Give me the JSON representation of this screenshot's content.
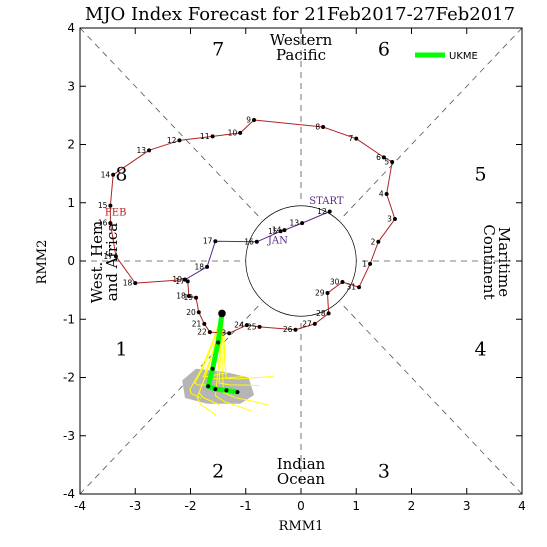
{
  "chart_data": {
    "type": "scatter",
    "title": "MJO Index Forecast for 21Feb2017-27Feb2017",
    "xlabel": "RMM1",
    "ylabel": "RMM2",
    "xlim": [
      -4,
      4
    ],
    "ylim": [
      -4,
      4
    ],
    "x_ticks": [
      "-4",
      "-3",
      "-2",
      "-1",
      "0",
      "1",
      "2",
      "3",
      "4"
    ],
    "y_ticks": [
      "-4",
      "-3",
      "-2",
      "-1",
      "0",
      "1",
      "2",
      "3",
      "4"
    ],
    "unit_circle_radius": 1,
    "phases": [
      {
        "label": "1",
        "x": -3.25,
        "y": -1.5
      },
      {
        "label": "2",
        "x": -1.5,
        "y": -3.6
      },
      {
        "label": "3",
        "x": 1.5,
        "y": -3.6
      },
      {
        "label": "4",
        "x": 3.25,
        "y": -1.5
      },
      {
        "label": "5",
        "x": 3.25,
        "y": 1.5
      },
      {
        "label": "6",
        "x": 1.5,
        "y": 3.65
      },
      {
        "label": "7",
        "x": -1.5,
        "y": 3.65
      },
      {
        "label": "8",
        "x": -3.25,
        "y": 1.5
      }
    ],
    "regions": [
      {
        "lines": [
          "Western",
          "Pacific"
        ]
      },
      {
        "lines": [
          "Indian",
          "Ocean"
        ]
      },
      {
        "lines": [
          "West. Hem",
          "and Africa"
        ]
      },
      {
        "lines": [
          "Maritime",
          "Continent"
        ]
      }
    ],
    "legend": {
      "position": "top-right",
      "entries": [
        {
          "label": "UKME",
          "color": "#00ff00"
        }
      ]
    },
    "months": [
      {
        "label": "START",
        "color": "#5b2a86",
        "x": 0.15,
        "y": 0.98
      },
      {
        "label": "JAN",
        "color": "#5b2a86",
        "x": -0.6,
        "y": 0.3
      },
      {
        "label": "FEB",
        "color": "#b22222",
        "x": -3.55,
        "y": 0.78
      }
    ],
    "series": [
      {
        "color": "#5b2a86",
        "points": [
          {
            "x": 0.52,
            "y": 0.85,
            "day": "12"
          },
          {
            "x": 0.02,
            "y": 0.65,
            "day": "13"
          },
          {
            "x": -0.3,
            "y": 0.53,
            "day": "14"
          },
          {
            "x": -0.37,
            "y": 0.51,
            "day": "15"
          },
          {
            "x": -0.8,
            "y": 0.33,
            "day": "16"
          },
          {
            "x": -1.55,
            "y": 0.34,
            "day": "17"
          },
          {
            "x": -1.7,
            "y": -0.1,
            "day": "18"
          },
          {
            "x": -2.1,
            "y": -0.32,
            "day": "19"
          }
        ]
      },
      {
        "color": "#b22222",
        "points": [
          {
            "x": -2.1,
            "y": -0.32
          },
          {
            "x": -3.0,
            "y": -0.38,
            "day": "18"
          },
          {
            "x": -3.35,
            "y": 0.08,
            "day": "17"
          },
          {
            "x": -3.45,
            "y": 0.65,
            "day": "16"
          },
          {
            "x": -3.45,
            "y": 0.95,
            "day": "15"
          },
          {
            "x": -3.4,
            "y": 1.48,
            "day": "14"
          },
          {
            "x": -2.75,
            "y": 1.9,
            "day": "13"
          },
          {
            "x": -2.2,
            "y": 2.07,
            "day": "12"
          },
          {
            "x": -1.6,
            "y": 2.14,
            "day": "11"
          },
          {
            "x": -1.1,
            "y": 2.2,
            "day": "10"
          },
          {
            "x": -0.85,
            "y": 2.42,
            "day": "9"
          },
          {
            "x": 0.4,
            "y": 2.3,
            "day": "8"
          },
          {
            "x": 1.0,
            "y": 2.1,
            "day": "7"
          },
          {
            "x": 1.5,
            "y": 1.78,
            "day": "6"
          },
          {
            "x": 1.65,
            "y": 1.7,
            "day": "5"
          },
          {
            "x": 1.55,
            "y": 1.15,
            "day": "4"
          },
          {
            "x": 1.7,
            "y": 0.72,
            "day": "3"
          },
          {
            "x": 1.4,
            "y": 0.33,
            "day": "2"
          },
          {
            "x": 1.25,
            "y": -0.05,
            "day": "1"
          },
          {
            "x": 1.05,
            "y": -0.45,
            "day": "31"
          },
          {
            "x": 0.75,
            "y": -0.36,
            "day": "30"
          },
          {
            "x": 0.48,
            "y": -0.55,
            "day": "29"
          },
          {
            "x": 0.5,
            "y": -0.9,
            "day": "28"
          },
          {
            "x": 0.25,
            "y": -1.08,
            "day": "27"
          },
          {
            "x": -0.1,
            "y": -1.18,
            "day": "26"
          },
          {
            "x": -0.75,
            "y": -1.13,
            "day": "25"
          },
          {
            "x": -0.98,
            "y": -1.1,
            "day": "24"
          },
          {
            "x": -1.3,
            "y": -1.24,
            "day": "23"
          },
          {
            "x": -1.65,
            "y": -1.22,
            "day": "22"
          },
          {
            "x": -1.75,
            "y": -1.08,
            "day": "21"
          },
          {
            "x": -1.85,
            "y": -0.88,
            "day": "20"
          },
          {
            "x": -1.9,
            "y": -0.63,
            "day": "19"
          },
          {
            "x": -2.03,
            "y": -0.6,
            "day": "18"
          },
          {
            "x": -2.05,
            "y": -0.35,
            "day": "17"
          }
        ]
      },
      {
        "name": "UKME",
        "color": "#00ff00",
        "start": {
          "x": -1.43,
          "y": -0.9
        },
        "points": [
          {
            "x": -1.43,
            "y": -0.9
          },
          {
            "x": -1.5,
            "y": -1.4
          },
          {
            "x": -1.6,
            "y": -1.85
          },
          {
            "x": -1.68,
            "y": -2.15
          },
          {
            "x": -1.55,
            "y": -2.2
          },
          {
            "x": -1.35,
            "y": -2.22
          },
          {
            "x": -1.15,
            "y": -2.25
          }
        ]
      }
    ],
    "ensemble": {
      "color": "#ffff00",
      "spread_color": "#b5b5b5"
    }
  }
}
